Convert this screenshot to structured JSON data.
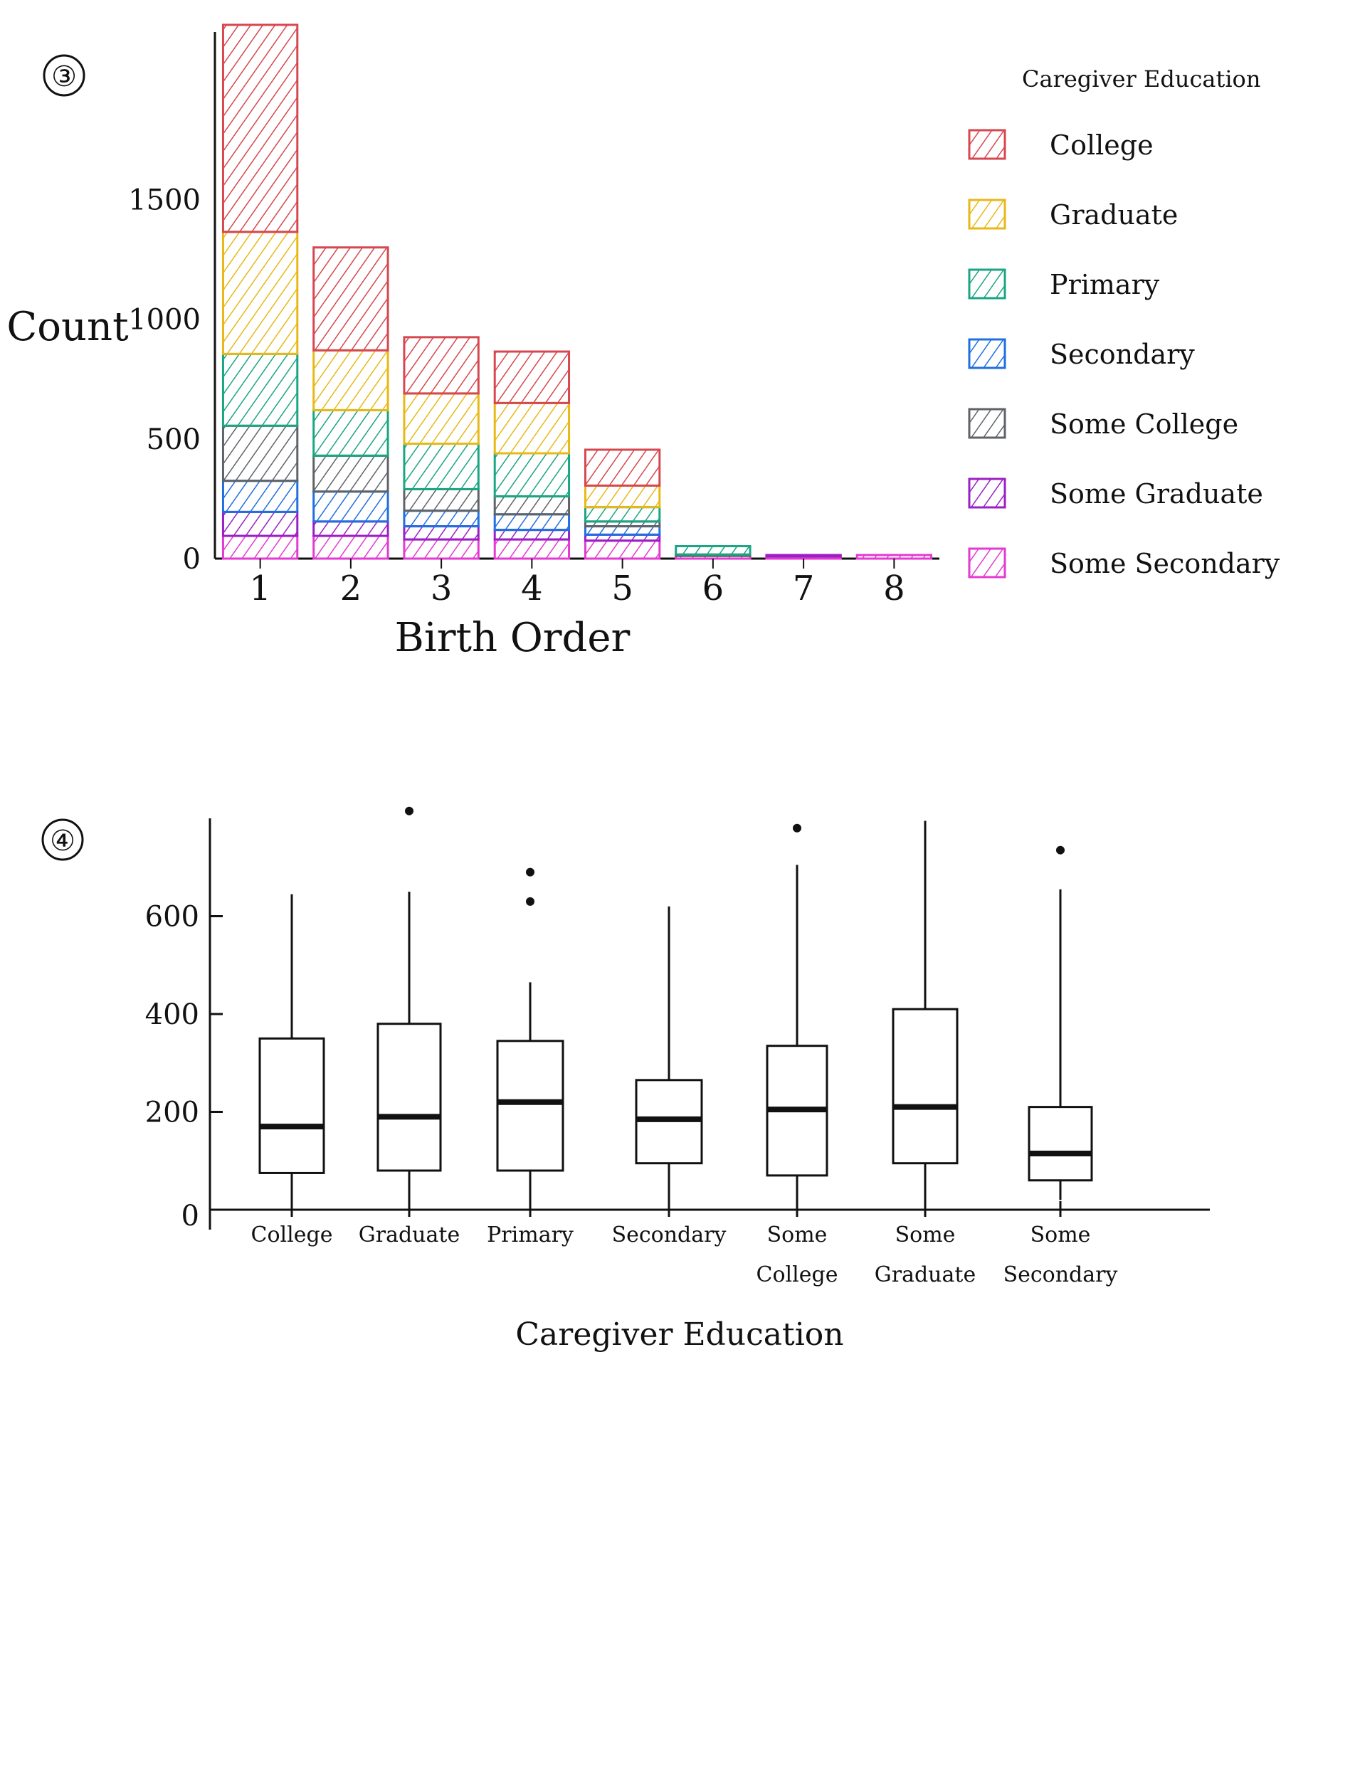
{
  "figure_labels": [
    "③",
    "④"
  ],
  "chart_data": [
    {
      "type": "bar",
      "stacked": true,
      "xlabel": "Birth Order",
      "ylabel": "Count",
      "categories": [
        "1",
        "2",
        "3",
        "4",
        "5",
        "6",
        "7",
        "8"
      ],
      "yticks": [
        "0",
        "500",
        "1000",
        "1500"
      ],
      "ylim": [
        0,
        2200
      ],
      "legend_title": "Caregiver Education",
      "legend_position": "right",
      "series": [
        {
          "name": "Some Secondary",
          "color": "#e23ad2",
          "values": [
            95,
            95,
            80,
            80,
            75,
            12,
            10,
            15
          ]
        },
        {
          "name": "Some Graduate",
          "color": "#9b1fc4",
          "values": [
            100,
            60,
            55,
            40,
            25,
            0,
            5,
            0
          ]
        },
        {
          "name": "Secondary",
          "color": "#1f6fe0",
          "values": [
            130,
            125,
            65,
            65,
            35,
            0,
            0,
            0
          ]
        },
        {
          "name": "Some College",
          "color": "#5f6368",
          "values": [
            230,
            150,
            90,
            75,
            20,
            5,
            0,
            0
          ]
        },
        {
          "name": "Primary",
          "color": "#1aa583",
          "values": [
            300,
            190,
            190,
            180,
            60,
            35,
            0,
            0
          ]
        },
        {
          "name": "Graduate",
          "color": "#e8b817",
          "values": [
            510,
            250,
            210,
            210,
            90,
            0,
            0,
            0
          ]
        },
        {
          "name": "College",
          "color": "#d6474f",
          "values": [
            865,
            430,
            235,
            215,
            150,
            0,
            0,
            0
          ]
        }
      ],
      "legend_order": [
        "College",
        "Graduate",
        "Primary",
        "Secondary",
        "Some College",
        "Some Graduate",
        "Some Secondary"
      ],
      "grid": false
    },
    {
      "type": "box",
      "xlabel": "Caregiver Education",
      "ylabel": "",
      "ylim": [
        0,
        800
      ],
      "yticks": [
        "0",
        "200",
        "400",
        "600"
      ],
      "ytick_values": [
        0,
        200,
        400,
        600
      ],
      "categories": [
        {
          "lines": [
            "College"
          ]
        },
        {
          "lines": [
            "Graduate"
          ]
        },
        {
          "lines": [
            "Primary"
          ]
        },
        {
          "lines": [
            "Secondary"
          ]
        },
        {
          "lines": [
            "Some",
            "College"
          ]
        },
        {
          "lines": [
            "Some",
            "Graduate"
          ]
        },
        {
          "lines": [
            "Some",
            "Secondary"
          ]
        }
      ],
      "boxes": [
        {
          "min": 5,
          "q1": 75,
          "median": 170,
          "q3": 350,
          "max": 645,
          "outliers": []
        },
        {
          "min": 5,
          "q1": 80,
          "median": 190,
          "q3": 380,
          "max": 650,
          "outliers": [
            815
          ]
        },
        {
          "min": 5,
          "q1": 80,
          "median": 220,
          "q3": 345,
          "max": 465,
          "outliers": [
            690,
            630
          ]
        },
        {
          "min": 0,
          "q1": 95,
          "median": 185,
          "q3": 265,
          "max": 620,
          "outliers": []
        },
        {
          "min": 5,
          "q1": 70,
          "median": 205,
          "q3": 335,
          "max": 705,
          "outliers": [
            780
          ]
        },
        {
          "min": 0,
          "q1": 95,
          "median": 210,
          "q3": 410,
          "max": 795,
          "outliers": []
        },
        {
          "min": 20,
          "q1": 60,
          "median": 115,
          "q3": 210,
          "max": 655,
          "outliers": [
            735
          ]
        }
      ],
      "grid": false
    }
  ]
}
